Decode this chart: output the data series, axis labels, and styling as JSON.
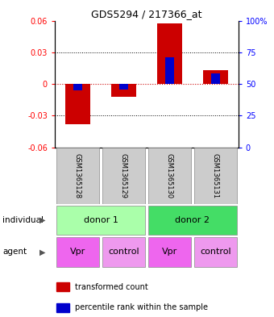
{
  "title": "GDS5294 / 217366_at",
  "samples": [
    "GSM1365128",
    "GSM1365129",
    "GSM1365130",
    "GSM1365131"
  ],
  "transformed_counts": [
    -0.038,
    -0.012,
    0.057,
    0.013
  ],
  "percentile_offsets": [
    -0.006,
    -0.005,
    0.025,
    0.01
  ],
  "ylim": [
    -0.06,
    0.06
  ],
  "yticks_left": [
    -0.06,
    -0.03,
    0,
    0.03,
    0.06
  ],
  "ytick_labels_left": [
    "-0.06",
    "-0.03",
    "0",
    "0.03",
    "0.06"
  ],
  "yticks_right": [
    0,
    25,
    50,
    75,
    100
  ],
  "ytick_labels_right": [
    "0",
    "25",
    "50",
    "75",
    "100%"
  ],
  "individual_groups": [
    {
      "label": "donor 1",
      "cols": [
        0,
        1
      ],
      "color": "#AAFFAA"
    },
    {
      "label": "donor 2",
      "cols": [
        2,
        3
      ],
      "color": "#44DD66"
    }
  ],
  "agents": [
    "Vpr",
    "control",
    "Vpr",
    "control"
  ],
  "agent_colors": [
    "#EE66EE",
    "#EE99EE",
    "#EE66EE",
    "#EE99EE"
  ],
  "bar_color_red": "#CC0000",
  "bar_color_blue": "#0000CC",
  "bar_width": 0.55,
  "zero_line_color": "#CC0000",
  "sample_box_color": "#CCCCCC",
  "legend_red_label": "transformed count",
  "legend_blue_label": "percentile rank within the sample",
  "individual_label": "individual",
  "agent_label": "agent"
}
